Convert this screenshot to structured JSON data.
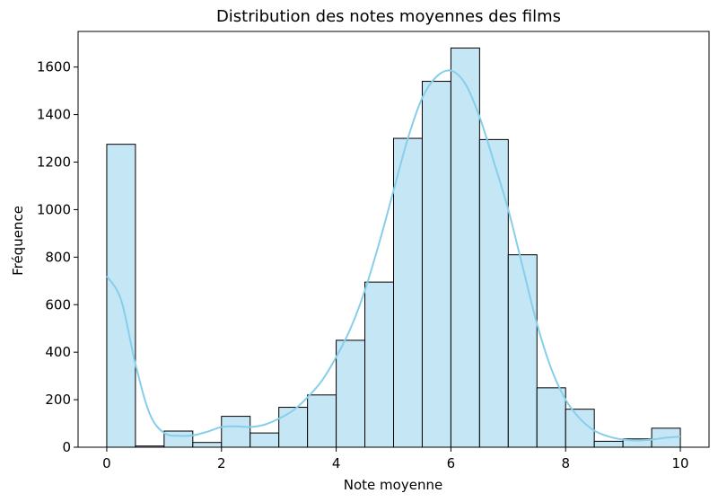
{
  "chart_data": {
    "type": "bar",
    "title": "Distribution des notes moyennes des films",
    "xlabel": "Note moyenne",
    "ylabel": "Fréquence",
    "xlim": [
      -0.5,
      10.5
    ],
    "ylim": [
      0,
      1750
    ],
    "xticks": [
      0,
      2,
      4,
      6,
      8,
      10
    ],
    "yticks": [
      0,
      200,
      400,
      600,
      800,
      1000,
      1200,
      1400,
      1600
    ],
    "bin_edges": [
      0,
      0.5,
      1,
      1.5,
      2,
      2.5,
      3,
      3.5,
      4,
      4.5,
      5,
      5.5,
      6,
      6.5,
      7,
      7.5,
      8,
      8.5,
      9,
      9.5,
      10
    ],
    "values": [
      1275,
      5,
      68,
      20,
      130,
      60,
      168,
      220,
      450,
      695,
      1300,
      1540,
      1680,
      1295,
      810,
      250,
      160,
      25,
      35,
      80
    ],
    "kde": {
      "x": [
        0,
        0.25,
        0.5,
        0.75,
        1,
        1.25,
        1.5,
        1.75,
        2,
        2.25,
        2.5,
        2.75,
        3,
        3.25,
        3.5,
        3.75,
        4,
        4.25,
        4.5,
        4.75,
        5,
        5.25,
        5.5,
        5.75,
        6,
        6.25,
        6.5,
        6.75,
        7,
        7.25,
        7.5,
        7.75,
        8,
        8.25,
        8.5,
        8.75,
        9,
        9.25,
        9.5,
        9.75,
        10
      ],
      "y": [
        720,
        620,
        350,
        140,
        60,
        48,
        50,
        65,
        85,
        88,
        85,
        95,
        120,
        155,
        210,
        280,
        380,
        500,
        660,
        860,
        1080,
        1300,
        1470,
        1560,
        1585,
        1530,
        1390,
        1200,
        1000,
        760,
        520,
        330,
        200,
        120,
        70,
        45,
        32,
        28,
        32,
        40,
        45
      ],
      "color": "#87ceeb"
    },
    "bar_color": "#c5e6f5",
    "edge_color": "#000000",
    "grid": false,
    "legend": "none"
  }
}
